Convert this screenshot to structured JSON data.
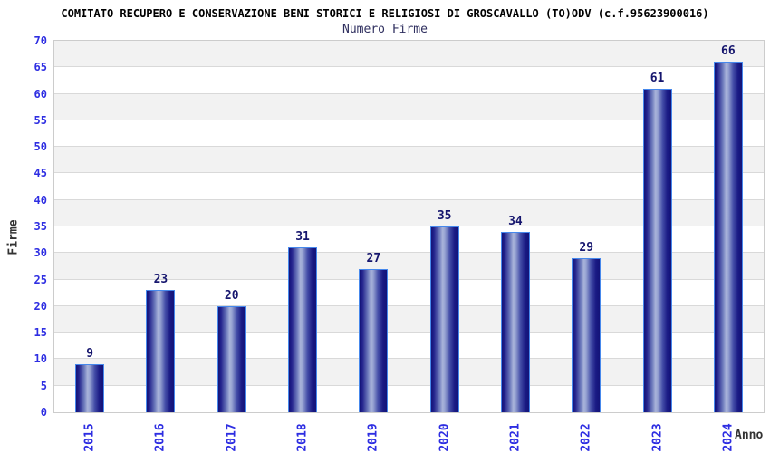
{
  "header": {
    "title": "COMITATO RECUPERO E CONSERVAZIONE BENI STORICI E RELIGIOSI DI GROSCAVALLO (TO)ODV (c.f.95623900016)",
    "subtitle": "Numero Firme"
  },
  "chart_data": {
    "type": "bar",
    "title": "COMITATO RECUPERO E CONSERVAZIONE BENI STORICI E RELIGIOSI DI GROSCAVALLO (TO)ODV (c.f.95623900016)",
    "subtitle": "Numero Firme",
    "categories": [
      "2015",
      "2016",
      "2017",
      "2018",
      "2019",
      "2020",
      "2021",
      "2022",
      "2023",
      "2024"
    ],
    "values": [
      9,
      23,
      20,
      31,
      27,
      35,
      34,
      29,
      61,
      66
    ],
    "xlabel": "Anno",
    "ylabel": "Firme",
    "ylim": [
      0,
      70
    ],
    "ytick_step": 5,
    "yticks": [
      0,
      5,
      10,
      15,
      20,
      25,
      30,
      35,
      40,
      45,
      50,
      55,
      60,
      65,
      70
    ],
    "grid": true,
    "legend_position": "none",
    "bar_value_labels": true,
    "x_tick_rotation_deg": 90,
    "colors": {
      "title_color": "#000000",
      "subtitle_color": "#2f2f5f",
      "tick_label": "#2e2ee2",
      "value_label": "#16166e",
      "axis_title_color": "#333333",
      "bar_dark": "#131378",
      "bar_light": "#a9b4da",
      "bar_border": "#4688ec",
      "band_gray": "#f2f2f2",
      "band_white": "#ffffff",
      "gridline": "#d9d9d9",
      "plot_border": "#cccccc"
    }
  }
}
